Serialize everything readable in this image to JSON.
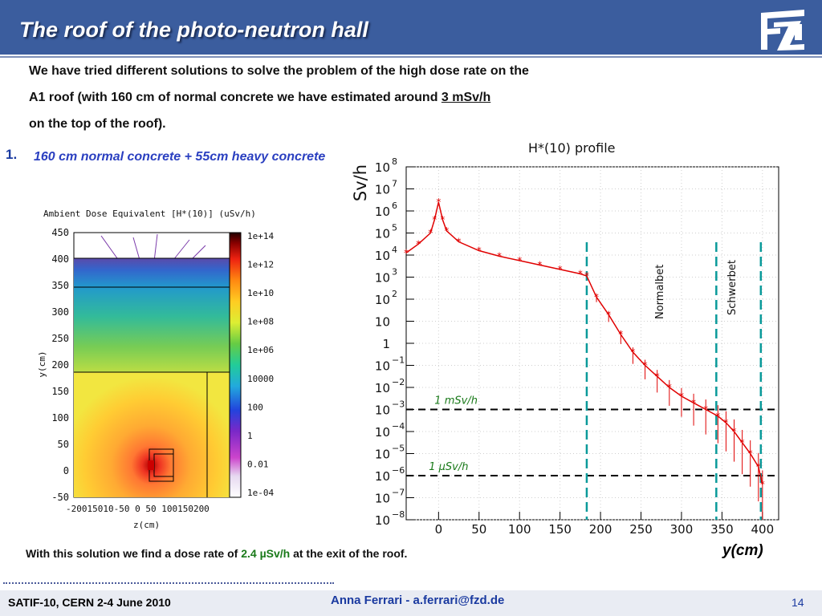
{
  "slide": {
    "title": "The roof of the photo-neutron hall",
    "intro_line1": "We have tried different solutions to solve the problem of the high dose rate on the",
    "intro_line2_pre": "A1 roof (with 160 cm of normal concrete  we have estimated around ",
    "intro_line2_em": "3 mSv/h",
    "intro_line3": "on the top of the roof).",
    "item_number": "1.",
    "item_text": "160 cm normal concrete + 55cm heavy concrete",
    "conclusion_pre": "With this solution we find a dose rate of ",
    "conclusion_value": "2.4 µSv/h",
    "conclusion_post": " at the exit of the roof.",
    "footer_left": "SATIF-10, CERN  2-4 June 2010",
    "footer_center": "Anna Ferrari  -   a.ferrari@fzd.de",
    "page_number": "14"
  },
  "colors": {
    "header": "#3b5d9e",
    "title": "#ffffff",
    "item": "#2a3fc0",
    "profile_series": "#e00000",
    "shield_lines": "#0a9a9a",
    "green": "#1a7a1a"
  },
  "chart_data": [
    {
      "type": "heatmap",
      "title": "Ambient Dose Equivalent [H*(10)] (uSv/h)",
      "xlabel": "z(cm)",
      "ylabel": "y(cm)",
      "x_tick_text": "-20015010-50  0  50 100150200",
      "y_ticks": [
        "450",
        "400",
        "350",
        "300",
        "250",
        "200",
        "150",
        "100",
        "50",
        "0",
        "-50"
      ],
      "colorbar_labels": [
        "1e+14",
        "1e+12",
        "1e+10",
        "1e+08",
        "1e+06",
        "10000",
        "100",
        "1",
        "0.01",
        "1e-04"
      ]
    },
    {
      "type": "line",
      "title": "H*(10) profile",
      "ylabel": "Sv/h",
      "xlabel": "y(cm)",
      "y_scale": "log",
      "x_range": [
        -40,
        420
      ],
      "y_range_exp": [
        -8,
        8
      ],
      "x_ticks": [
        "0",
        "50",
        "100",
        "150",
        "200",
        "250",
        "300",
        "350",
        "400"
      ],
      "y_ticks": [
        {
          "b": "10",
          "e": "8"
        },
        {
          "b": "10",
          "e": "7"
        },
        {
          "b": "10",
          "e": "6"
        },
        {
          "b": "10",
          "e": "5"
        },
        {
          "b": "10",
          "e": "4"
        },
        {
          "b": "10",
          "e": "3"
        },
        {
          "b": "10",
          "e": "2"
        },
        {
          "b": "10",
          "e": ""
        },
        {
          "b": "1",
          "e": ""
        },
        {
          "b": "10",
          "e": "−1"
        },
        {
          "b": "10",
          "e": "−2"
        },
        {
          "b": "10",
          "e": "−3"
        },
        {
          "b": "10",
          "e": "−4"
        },
        {
          "b": "10",
          "e": "−5"
        },
        {
          "b": "10",
          "e": "−6"
        },
        {
          "b": "10",
          "e": "−7"
        },
        {
          "b": "10",
          "e": "−8"
        }
      ],
      "series": [
        {
          "x": [
            -40,
            -25,
            -10,
            -5,
            0,
            5,
            10,
            25,
            50,
            75,
            100,
            125,
            150,
            175,
            183,
            195,
            210,
            225,
            240,
            255,
            270,
            285,
            300,
            315,
            330,
            345,
            355,
            365,
            375,
            385,
            395,
            400
          ],
          "log10_y": [
            4.1,
            4.5,
            5.0,
            5.6,
            6.4,
            5.6,
            5.1,
            4.6,
            4.2,
            3.95,
            3.75,
            3.55,
            3.35,
            3.15,
            3.05,
            2.1,
            1.3,
            0.4,
            -0.4,
            -1.0,
            -1.5,
            -2.0,
            -2.4,
            -2.7,
            -3.0,
            -3.3,
            -3.6,
            -4.0,
            -4.5,
            -5.0,
            -5.6,
            -6.4
          ]
        }
      ],
      "reference_lines": [
        {
          "label": "1 mSv/h",
          "log10_y": -3
        },
        {
          "label": "1 µSv/h",
          "log10_y": -6
        }
      ],
      "shield_labels": [
        "Normalbet",
        "Schwerbet"
      ],
      "boundaries_x": [
        183,
        343,
        398
      ]
    }
  ]
}
